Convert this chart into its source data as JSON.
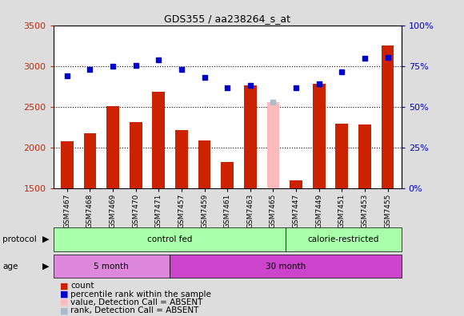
{
  "title": "GDS355 / aa238264_s_at",
  "samples": [
    "GSM7467",
    "GSM7468",
    "GSM7469",
    "GSM7470",
    "GSM7471",
    "GSM7457",
    "GSM7459",
    "GSM7461",
    "GSM7463",
    "GSM7465",
    "GSM7447",
    "GSM7449",
    "GSM7451",
    "GSM7453",
    "GSM7455"
  ],
  "bar_values": [
    2070,
    2175,
    2510,
    2310,
    2680,
    2210,
    2085,
    1820,
    2760,
    2560,
    1590,
    2780,
    2290,
    2280,
    3250
  ],
  "bar_absent": [
    false,
    false,
    false,
    false,
    false,
    false,
    false,
    false,
    false,
    true,
    false,
    false,
    false,
    false,
    false
  ],
  "dot_values": [
    2880,
    2960,
    3000,
    3005,
    3080,
    2960,
    2860,
    2730,
    2760,
    2560,
    2730,
    2780,
    2930,
    3090,
    3100
  ],
  "dot_absent": [
    false,
    false,
    false,
    false,
    false,
    false,
    false,
    false,
    false,
    true,
    false,
    false,
    false,
    false,
    false
  ],
  "ylim_left": [
    1500,
    3500
  ],
  "ylim_right": [
    0,
    100
  ],
  "yticks_left": [
    1500,
    2000,
    2500,
    3000,
    3500
  ],
  "yticks_right": [
    0,
    25,
    50,
    75,
    100
  ],
  "bar_color": "#cc2200",
  "bar_absent_color": "#ffbbbb",
  "dot_color": "#0000cc",
  "dot_absent_color": "#aabbcc",
  "bg_color": "#dddddd",
  "plot_bg_color": "#ffffff",
  "protocol_groups": [
    {
      "label": "control fed",
      "start": 0,
      "end": 9,
      "color": "#aaffaa"
    },
    {
      "label": "calorie-restricted",
      "start": 10,
      "end": 14,
      "color": "#aaffaa"
    }
  ],
  "age_groups": [
    {
      "label": "5 month",
      "start": 0,
      "end": 4,
      "color": "#dd88dd"
    },
    {
      "label": "30 month",
      "start": 5,
      "end": 14,
      "color": "#cc44cc"
    }
  ],
  "legend_items": [
    {
      "label": "count",
      "color": "#cc2200"
    },
    {
      "label": "percentile rank within the sample",
      "color": "#0000cc"
    },
    {
      "label": "value, Detection Call = ABSENT",
      "color": "#ffbbbb"
    },
    {
      "label": "rank, Detection Call = ABSENT",
      "color": "#aabbcc"
    }
  ],
  "left_axis_color": "#cc2200",
  "right_axis_color": "#0000cc",
  "dotted_line_y": [
    2000,
    2500,
    3000
  ]
}
